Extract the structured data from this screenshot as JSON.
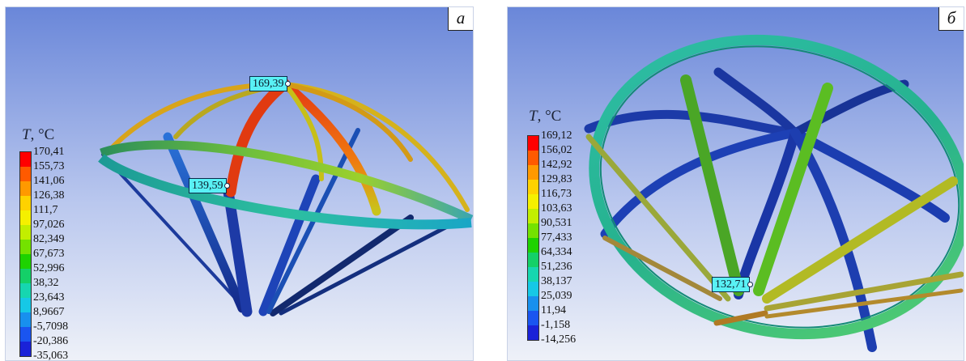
{
  "colors": {
    "bg_top": "#6a87d9",
    "bg_bottom": "#eef1f8",
    "scale": [
      "#ff0000",
      "#ff5a00",
      "#ff9900",
      "#ffd200",
      "#f5f000",
      "#c2ee00",
      "#74e200",
      "#1ed200",
      "#14d068",
      "#16d6b0",
      "#16c8e6",
      "#1890ee",
      "#1a55f0",
      "#1a22d8"
    ]
  },
  "panel_a": {
    "letter": "а",
    "legend": {
      "var": "T",
      "unit": ", °C",
      "ticks": [
        "170,41",
        "155,73",
        "141,06",
        "126,38",
        "111,7",
        "97,026",
        "82,349",
        "67,673",
        "52,996",
        "38,32",
        "23,643",
        "8,9667",
        "-5,7098",
        "-20,386",
        "-35,063"
      ]
    },
    "probes": [
      "169,39",
      "139,59"
    ]
  },
  "panel_b": {
    "letter": "б",
    "legend": {
      "var": "T",
      "unit": ", °C",
      "ticks": [
        "169,12",
        "156,02",
        "142,92",
        "129,83",
        "116,73",
        "103,63",
        "90,531",
        "77,433",
        "64,334",
        "51,236",
        "38,137",
        "25,039",
        "11,94",
        "-1,158",
        "-14,256"
      ]
    },
    "probes": [
      "132,71"
    ]
  }
}
